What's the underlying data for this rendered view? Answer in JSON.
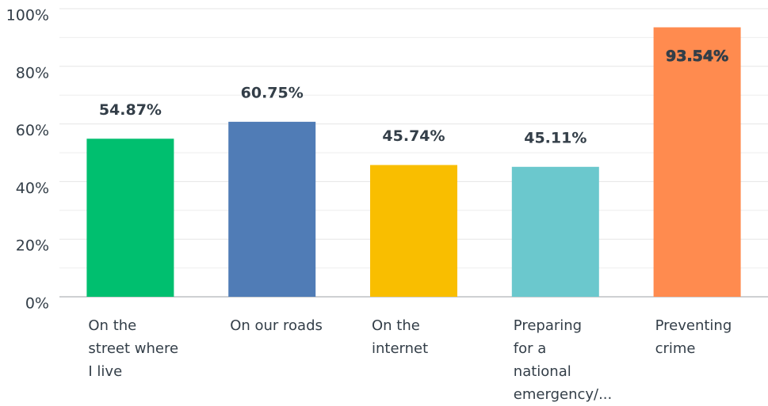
{
  "chart_data": {
    "type": "bar",
    "categories": [
      [
        "On the",
        "street where",
        "I live"
      ],
      [
        "On our roads"
      ],
      [
        "On the",
        "internet"
      ],
      [
        "Preparing",
        "for a",
        "national",
        "emergency/..."
      ],
      [
        "Preventing",
        "crime"
      ]
    ],
    "values": [
      54.87,
      60.75,
      45.74,
      45.11,
      93.54
    ],
    "value_labels": [
      "54.87%",
      "60.75%",
      "45.74%",
      "45.11%",
      "93.54%"
    ],
    "colors": [
      "#00bf6f",
      "#507cb6",
      "#f9be00",
      "#6bc8cd",
      "#ff8b4f"
    ],
    "ylim": [
      0,
      100
    ],
    "yticks": [
      {
        "value": 0,
        "label": "0%"
      },
      {
        "value": 20,
        "label": "20%"
      },
      {
        "value": 40,
        "label": "40%"
      },
      {
        "value": 60,
        "label": "60%"
      },
      {
        "value": 80,
        "label": "80%"
      },
      {
        "value": 100,
        "label": "100%"
      }
    ],
    "grid": true
  }
}
